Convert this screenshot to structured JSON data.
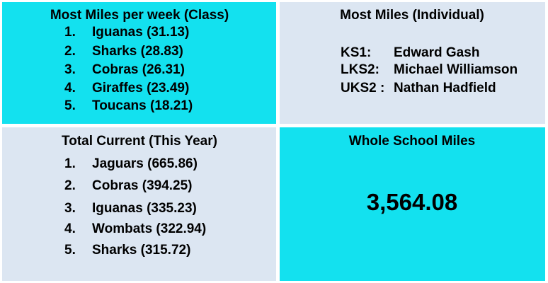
{
  "panels": [
    {
      "title": "Most Miles per week (Class)",
      "items": [
        {
          "rank": "1.",
          "text": "Iguanas (31.13)"
        },
        {
          "rank": "2.",
          "text": "Sharks (28.83)"
        },
        {
          "rank": "3.",
          "text": "Cobras (26.31)"
        },
        {
          "rank": "4.",
          "text": "Giraffes (23.49)"
        },
        {
          "rank": "5.",
          "text": "Toucans (18.21)"
        }
      ]
    },
    {
      "title": "Most Miles (Individual)",
      "items": [
        {
          "rank": "KS1:",
          "text": "Edward Gash"
        },
        {
          "rank": "LKS2:",
          "text": "Michael Williamson"
        },
        {
          "rank": "UKS2 :",
          "text": "Nathan Hadfield"
        }
      ]
    },
    {
      "title": "Total Current (This Year)",
      "items": [
        {
          "rank": "1.",
          "text": "Jaguars (665.86)"
        },
        {
          "rank": "2.",
          "text": "Cobras (394.25)"
        },
        {
          "rank": "3.",
          "text": "Iguanas (335.23)"
        },
        {
          "rank": "4.",
          "text": "Wombats (322.94)"
        },
        {
          "rank": "5.",
          "text": "Sharks (315.72)"
        }
      ]
    },
    {
      "title": "Whole School Miles",
      "total": "3,564.08"
    }
  ]
}
